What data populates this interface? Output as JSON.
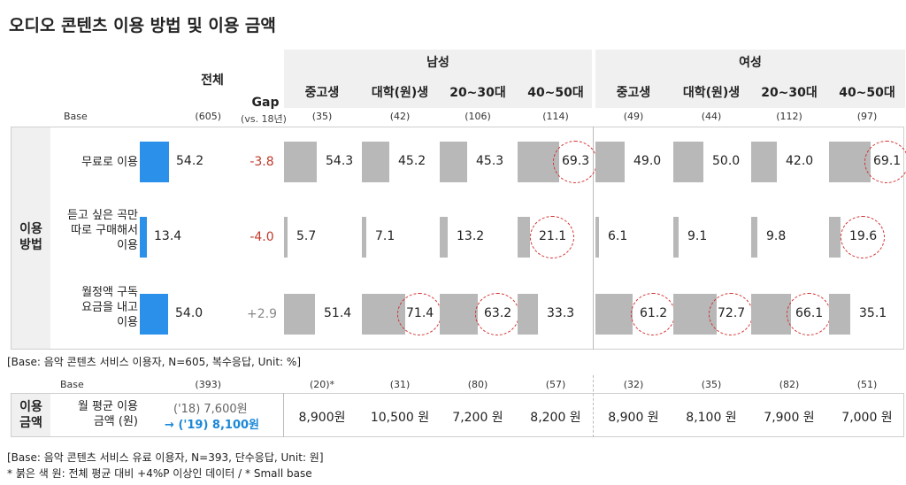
{
  "title": "오디오 콘텐츠 이용 방법 및 이용 금액",
  "headers": {
    "total": "전체",
    "gap": "Gap",
    "gap_sub": "(vs. 18년)",
    "base": "Base",
    "male": "남성",
    "female": "여성",
    "usage_group": "이용\n방법",
    "amount_group": "이용\n금액"
  },
  "chart_data": {
    "type": "bar",
    "title": "오디오 콘텐츠 이용 방법 및 이용 금액",
    "unit": "%",
    "ylim": [
      0,
      100
    ],
    "categories": [
      "중고생",
      "대학(원)생",
      "20~30대",
      "40~50대",
      "중고생",
      "대학(원)생",
      "20~30대",
      "40~50대"
    ],
    "category_groups": [
      "남성",
      "남성",
      "남성",
      "남성",
      "여성",
      "여성",
      "여성",
      "여성"
    ],
    "category_labels": [
      "중고생",
      "대학(원)생",
      "20~30대",
      "40~50대",
      "중고생",
      "대학(원)생",
      "20~30대",
      "40~50대"
    ],
    "total_base": "(605)",
    "bases": [
      "(35)",
      "(42)",
      "(106)",
      "(114)",
      "(49)",
      "(44)",
      "(112)",
      "(97)"
    ],
    "series": [
      {
        "name": "무료로 이용",
        "label": "무료로 이용",
        "total": 54.2,
        "gap": "-3.8",
        "gap_color": "#c0392b",
        "values": [
          54.3,
          45.2,
          45.3,
          69.3,
          49.0,
          50.0,
          42.0,
          69.1
        ],
        "display": [
          "54.3",
          "45.2",
          "45.3",
          "69.3",
          "49.0",
          "50.0",
          "42.0",
          "69.1"
        ],
        "highlight": [
          false,
          false,
          false,
          true,
          false,
          false,
          false,
          true
        ]
      },
      {
        "name": "듣고 싶은 곡만 따로 구매해서 이용",
        "label": "듣고 싶은 곡만\n따로 구매해서\n이용",
        "total": 13.4,
        "gap": "-4.0",
        "gap_color": "#c0392b",
        "values": [
          5.7,
          7.1,
          13.2,
          21.1,
          6.1,
          9.1,
          9.8,
          19.6
        ],
        "display": [
          "5.7",
          "7.1",
          "13.2",
          "21.1",
          "6.1",
          "9.1",
          "9.8",
          "19.6"
        ],
        "highlight": [
          false,
          false,
          false,
          true,
          false,
          false,
          false,
          true
        ]
      },
      {
        "name": "월정액 구독 요금을 내고 이용",
        "label": "월정액 구독\n요금을 내고\n이용",
        "total": 54.0,
        "gap": "+2.9",
        "gap_color": "#888888",
        "values": [
          51.4,
          71.4,
          63.2,
          33.3,
          61.2,
          72.7,
          66.1,
          35.1
        ],
        "display": [
          "51.4",
          "71.4",
          "63.2",
          "33.3",
          "61.2",
          "72.7",
          "66.1",
          "35.1"
        ],
        "highlight": [
          false,
          true,
          true,
          false,
          true,
          true,
          true,
          false
        ]
      }
    ],
    "amount": {
      "label": "월 평균 이용\n금액 (원)",
      "total_base": "(393)",
      "bases": [
        "(20)*",
        "(31)",
        "(80)",
        "(57)",
        "(32)",
        "(35)",
        "(82)",
        "(51)"
      ],
      "prev_total": "('18) 7,600원",
      "arrow": "→",
      "curr_total": "('19) 8,100원",
      "values": [
        8900,
        10500,
        7200,
        8200,
        8900,
        8100,
        7900,
        7000
      ],
      "display": [
        "8,900원",
        "10,500 원",
        "7,200 원",
        "8,200 원",
        "8,900 원",
        "8,100 원",
        "7,900 원",
        "7,000 원"
      ]
    }
  },
  "notes": {
    "note1": "[Base: 음악 콘텐츠 서비스 이용자, N=605, 복수응답, Unit: %]",
    "note2": "[Base: 음악 콘텐츠 서비스 유료 이용자, N=393, 단수응답, Unit: 원]",
    "note3": "* 붉은 색 원: 전체 평균 대비 +4%P 이상인 데이터 / * Small base"
  }
}
